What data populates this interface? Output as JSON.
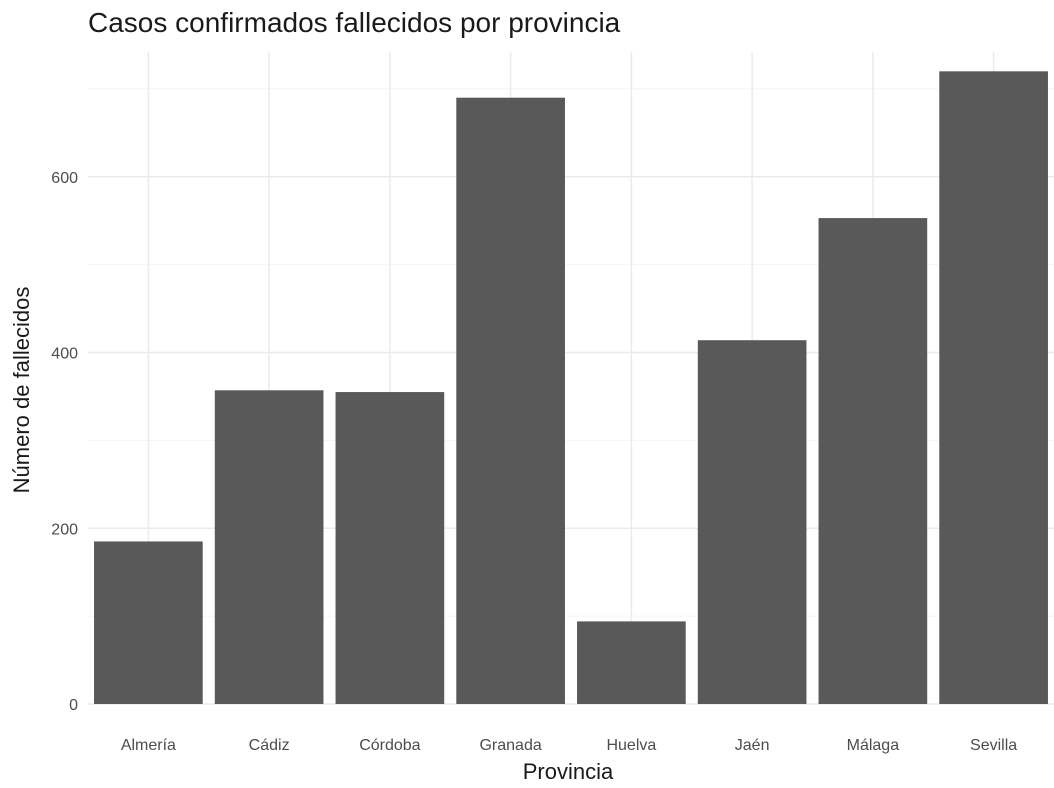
{
  "chart_data": {
    "type": "bar",
    "title": "Casos confirmados fallecidos por provincia",
    "xlabel": "Provincia",
    "ylabel": "Número de fallecidos",
    "categories": [
      "Almería",
      "Cádiz",
      "Córdoba",
      "Granada",
      "Huelva",
      "Jaén",
      "Málaga",
      "Sevilla"
    ],
    "values": [
      185,
      357,
      355,
      690,
      94,
      414,
      553,
      720
    ],
    "ylim": [
      0,
      742
    ],
    "yticks": [
      0,
      200,
      400,
      600
    ],
    "y_minor_ticks": [
      100,
      300,
      500,
      700
    ],
    "grid": true,
    "legend": "none",
    "colors": {
      "bar": "#595959",
      "grid_major": "#ebebeb",
      "grid_minor": "#f4f4f4"
    }
  }
}
